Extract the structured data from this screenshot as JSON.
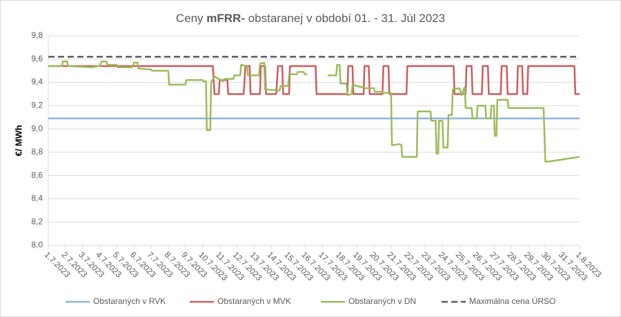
{
  "chart_data": {
    "type": "line",
    "title": [
      "Ceny ",
      "mFRR-",
      " obstaranej v období 01. - 31. Júl 2023"
    ],
    "y_label": "€/ MWh",
    "xlim": [
      0,
      31
    ],
    "xticks": [
      {
        "value": 0,
        "label": "1.7.2023"
      },
      {
        "value": 1,
        "label": "2.7.2023"
      },
      {
        "value": 2,
        "label": "3.7.2023"
      },
      {
        "value": 3,
        "label": "4.7.2023"
      },
      {
        "value": 4,
        "label": "5.7.2023"
      },
      {
        "value": 5,
        "label": "6.7.2023"
      },
      {
        "value": 6,
        "label": "7.7.2023"
      },
      {
        "value": 7,
        "label": "8.7.2023"
      },
      {
        "value": 8,
        "label": "9.7.2023"
      },
      {
        "value": 9,
        "label": "10.7.2023"
      },
      {
        "value": 10,
        "label": "11.7.2023"
      },
      {
        "value": 11,
        "label": "12.7.2023"
      },
      {
        "value": 12,
        "label": "13.7.2023"
      },
      {
        "value": 13,
        "label": "14.7.2023"
      },
      {
        "value": 14,
        "label": "15.7.2023"
      },
      {
        "value": 15,
        "label": "16.7.2023"
      },
      {
        "value": 16,
        "label": "17.7.2023"
      },
      {
        "value": 17,
        "label": "18.7.2023"
      },
      {
        "value": 18,
        "label": "19.7.2023"
      },
      {
        "value": 19,
        "label": "20.7.2023"
      },
      {
        "value": 20,
        "label": "21.7.2023"
      },
      {
        "value": 21,
        "label": "22.7.2023"
      },
      {
        "value": 22,
        "label": "23.7.2023"
      },
      {
        "value": 23,
        "label": "24.7.2023"
      },
      {
        "value": 24,
        "label": "25.7.2023"
      },
      {
        "value": 25,
        "label": "26.7.2023"
      },
      {
        "value": 26,
        "label": "27.7.2023"
      },
      {
        "value": 27,
        "label": "28.7.2023"
      },
      {
        "value": 28,
        "label": "29.7.2023"
      },
      {
        "value": 29,
        "label": "30.7.2023"
      },
      {
        "value": 30,
        "label": "31.7.2023"
      },
      {
        "value": 31,
        "label": "1.8.2023"
      }
    ],
    "ylim": [
      8.0,
      9.8
    ],
    "yticks": [
      {
        "value": 8.0,
        "label": "8,0"
      },
      {
        "value": 8.2,
        "label": "8,2"
      },
      {
        "value": 8.4,
        "label": "8,4"
      },
      {
        "value": 8.6,
        "label": "8,6"
      },
      {
        "value": 8.8,
        "label": "8,8"
      },
      {
        "value": 9.0,
        "label": "9,0"
      },
      {
        "value": 9.2,
        "label": "9,2"
      },
      {
        "value": 9.4,
        "label": "9,4"
      },
      {
        "value": 9.6,
        "label": "9,6"
      },
      {
        "value": 9.8,
        "label": "9,8"
      }
    ],
    "grid": true,
    "series": [
      {
        "name": "Obstaraných v RVK",
        "color": "#8db3e2",
        "x": [
          0,
          31
        ],
        "values": [
          9.09,
          9.09
        ]
      },
      {
        "name": "Obstaraných v MVK",
        "color": "#d05a5a",
        "x": [
          0,
          9.6,
          9.7,
          9.95,
          10.0,
          10.45,
          10.5,
          11.4,
          11.5,
          11.75,
          11.8,
          12.35,
          12.4,
          12.65,
          12.7,
          13.3,
          13.4,
          13.65,
          13.7,
          14.05,
          14.1,
          15.6,
          15.65,
          17.45,
          17.5,
          17.75,
          17.8,
          18.4,
          18.45,
          18.7,
          18.75,
          19.5,
          19.55,
          19.85,
          19.9,
          20.9,
          20.95,
          23.65,
          23.7,
          24.35,
          24.4,
          24.7,
          24.75,
          25.3,
          25.35,
          25.65,
          25.7,
          26.4,
          26.45,
          26.75,
          26.8,
          27.35,
          27.4,
          27.65,
          27.7,
          27.95,
          28.0,
          30.7,
          30.75,
          31
        ],
        "values": [
          9.54,
          9.54,
          9.3,
          9.3,
          9.42,
          9.42,
          9.3,
          9.3,
          9.54,
          9.54,
          9.3,
          9.3,
          9.54,
          9.54,
          9.3,
          9.3,
          9.54,
          9.54,
          9.3,
          9.3,
          9.54,
          9.54,
          9.3,
          9.3,
          9.54,
          9.54,
          9.3,
          9.3,
          9.54,
          9.54,
          9.3,
          9.3,
          9.54,
          9.54,
          9.3,
          9.3,
          9.54,
          9.54,
          9.3,
          9.3,
          9.54,
          9.54,
          9.3,
          9.3,
          9.54,
          9.54,
          9.3,
          9.3,
          9.54,
          9.54,
          9.3,
          9.3,
          9.54,
          9.54,
          9.3,
          9.3,
          9.54,
          9.54,
          9.3,
          9.3
        ]
      },
      {
        "name": "Obstaraných v DN",
        "color": "#9bbb59",
        "x": [
          0,
          0.8,
          0.85,
          1.1,
          1.15,
          2.5,
          3.0,
          3.1,
          3.4,
          3.45,
          4.0,
          4.05,
          4.9,
          5.0,
          5.2,
          5.25,
          6.0,
          6.05,
          7.0,
          7.05,
          8.0,
          8.05,
          9.0,
          9.05,
          9.2,
          9.25,
          9.45,
          9.5,
          9.7,
          10.2,
          10.3,
          10.8,
          10.85,
          11.2,
          11.25,
          11.6,
          11.65,
          12.3,
          12.35,
          12.6,
          12.65,
          13.5,
          13.55,
          14.0,
          14.05,
          14.5,
          14.55,
          14.9,
          14.95,
          15.1,
          15.5,
          16.3,
          16.8,
          16.85,
          17.0,
          17.05,
          17.4,
          17.45,
          17.7,
          17.75,
          18.0,
          18.5,
          19.0,
          19.05,
          19.5,
          19.55,
          20.0,
          20.05,
          20.5,
          20.6,
          20.65,
          21.5,
          21.55,
          22.3,
          22.35,
          22.6,
          22.65,
          22.75,
          22.8,
          23.0,
          23.05,
          23.3,
          23.35,
          23.55,
          23.6,
          24.0,
          24.1,
          24.3,
          24.35,
          24.7,
          24.75,
          25.0,
          25.05,
          25.5,
          25.55,
          25.8,
          25.85,
          26.0,
          26.05,
          26.15,
          26.2,
          26.8,
          26.85,
          28.9,
          29.0,
          29.2,
          31
        ],
        "values": [
          9.54,
          9.54,
          9.58,
          9.58,
          9.54,
          9.53,
          9.54,
          9.58,
          9.58,
          9.55,
          9.55,
          9.53,
          9.53,
          9.57,
          9.57,
          9.52,
          9.51,
          9.5,
          9.5,
          9.38,
          9.38,
          9.42,
          9.42,
          9.41,
          9.41,
          8.99,
          8.99,
          9.4,
          9.45,
          9.41,
          9.43,
          9.43,
          9.46,
          9.46,
          9.55,
          9.54,
          9.46,
          9.46,
          9.56,
          9.57,
          9.34,
          9.33,
          9.37,
          9.37,
          9.47,
          9.47,
          9.49,
          9.49,
          9.47,
          9.47,
          null,
          9.46,
          9.46,
          9.55,
          9.55,
          9.39,
          9.39,
          9.29,
          9.3,
          9.38,
          9.37,
          9.35,
          9.35,
          9.32,
          9.32,
          9.31,
          9.31,
          8.86,
          8.87,
          8.86,
          8.76,
          8.76,
          9.15,
          9.15,
          9.07,
          9.07,
          8.79,
          8.79,
          9.07,
          9.07,
          8.84,
          8.84,
          9.12,
          9.12,
          9.34,
          9.35,
          9.29,
          9.36,
          9.18,
          9.18,
          9.09,
          9.09,
          9.2,
          9.2,
          9.09,
          9.09,
          9.2,
          9.2,
          8.94,
          8.94,
          9.25,
          9.25,
          9.18,
          9.18,
          8.72,
          8.72,
          8.76
        ]
      },
      {
        "name": "Maximálna cena ÚRSO",
        "color": "#595959",
        "dashed": true,
        "x": [
          0,
          31
        ],
        "values": [
          9.62,
          9.62
        ]
      }
    ]
  }
}
